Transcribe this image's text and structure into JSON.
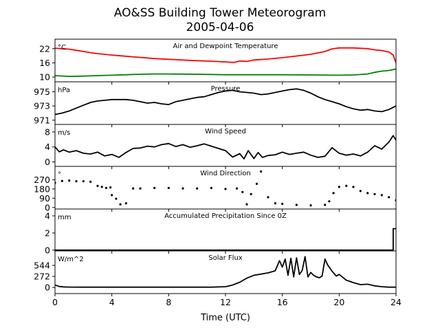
{
  "title": {
    "line1": "AO&SS Building Tower Meteorogram",
    "line2": "2005-04-06"
  },
  "x_axis": {
    "label": "Time (UTC)",
    "ticks": [
      0,
      4,
      8,
      12,
      16,
      20,
      24
    ],
    "range": [
      0,
      24
    ]
  },
  "chart_data": [
    {
      "type": "line",
      "title": "Air and Dewpoint Temperature",
      "unit": "°C",
      "ylim": [
        8,
        26
      ],
      "yticks": [
        10,
        16,
        22
      ],
      "series": [
        {
          "color": "#ff0000",
          "x": [
            0,
            0.5,
            1,
            1.5,
            2,
            2.5,
            3,
            3.5,
            4,
            5,
            6,
            7,
            8,
            9,
            10,
            11,
            12,
            12.6,
            13,
            13.5,
            14,
            15,
            16,
            17,
            18,
            19,
            19.5,
            20,
            21,
            22,
            22.5,
            23,
            23.5,
            23.8,
            24
          ],
          "y": [
            22.2,
            22.0,
            21.8,
            21.3,
            20.8,
            20.3,
            19.9,
            19.6,
            19.3,
            18.8,
            18.3,
            17.8,
            17.5,
            17.2,
            16.9,
            16.7,
            16.4,
            16.2,
            16.8,
            16.6,
            17.2,
            17.6,
            18.2,
            18.9,
            19.6,
            20.8,
            21.9,
            22.3,
            22.3,
            22.0,
            21.5,
            21.2,
            20.6,
            19.3,
            16.0
          ]
        },
        {
          "color": "#008000",
          "x": [
            0,
            1,
            2,
            3,
            4,
            5,
            6,
            7,
            8,
            10,
            12,
            14,
            16,
            18,
            20,
            21,
            22,
            22.5,
            23,
            23.5,
            24
          ],
          "y": [
            10.6,
            10.3,
            10.4,
            10.6,
            10.8,
            11.0,
            11.2,
            11.3,
            11.3,
            11.2,
            11.0,
            11.0,
            11.0,
            10.9,
            10.8,
            10.9,
            11.3,
            12.0,
            12.5,
            12.8,
            13.4
          ]
        }
      ]
    },
    {
      "type": "line",
      "title": "Pressure",
      "unit": "hPa",
      "ylim": [
        970.4,
        976.4
      ],
      "yticks": [
        971,
        973,
        975
      ],
      "series": [
        {
          "color": "#000000",
          "x": [
            0,
            0.5,
            1,
            1.5,
            2,
            2.5,
            3,
            3.5,
            4,
            4.5,
            5,
            5.5,
            6,
            6.5,
            7,
            7.5,
            8,
            8.5,
            9,
            9.5,
            10,
            10.5,
            11,
            11.5,
            12,
            12.5,
            13,
            13.5,
            14,
            14.5,
            15,
            15.5,
            16,
            16.5,
            17,
            17.5,
            18,
            18.5,
            19,
            19.5,
            20,
            20.5,
            21,
            21.5,
            22,
            22.5,
            23,
            23.5,
            24
          ],
          "y": [
            971.8,
            972.0,
            972.3,
            972.7,
            973.1,
            973.5,
            973.7,
            973.8,
            973.9,
            973.9,
            973.9,
            973.8,
            973.6,
            973.4,
            973.5,
            973.3,
            973.2,
            973.6,
            973.8,
            974.0,
            974.2,
            974.3,
            974.6,
            974.9,
            975.1,
            975.2,
            975.0,
            974.9,
            974.8,
            974.6,
            974.7,
            974.9,
            975.1,
            975.3,
            975.4,
            975.2,
            974.8,
            974.3,
            973.9,
            973.6,
            973.3,
            972.9,
            972.6,
            972.4,
            972.5,
            972.3,
            972.2,
            972.5,
            973.0
          ]
        }
      ]
    },
    {
      "type": "line",
      "title": "Wind Speed",
      "unit": "m/s",
      "ylim": [
        -1.2,
        10
      ],
      "yticks": [
        0,
        4,
        8
      ],
      "series": [
        {
          "color": "#000000",
          "x": [
            0,
            0.3,
            0.6,
            1,
            1.5,
            2,
            2.5,
            3,
            3.5,
            4,
            4.5,
            5,
            5.5,
            6,
            6.5,
            7,
            7.5,
            8,
            8.5,
            9,
            9.5,
            10,
            10.5,
            11,
            11.5,
            12,
            12.5,
            13,
            13.3,
            13.6,
            14,
            14.3,
            14.6,
            15,
            15.5,
            16,
            16.5,
            17,
            17.5,
            18,
            18.5,
            19,
            19.5,
            20,
            20.5,
            21,
            21.5,
            22,
            22.5,
            23,
            23.5,
            23.8,
            24
          ],
          "y": [
            4.0,
            2.7,
            3.2,
            2.6,
            3.0,
            2.3,
            2.1,
            2.6,
            1.6,
            2.0,
            1.2,
            2.5,
            3.6,
            3.7,
            4.2,
            4.0,
            4.6,
            4.9,
            4.1,
            4.6,
            3.9,
            4.3,
            4.8,
            4.2,
            3.6,
            3.0,
            1.3,
            2.2,
            0.8,
            3.0,
            0.9,
            2.5,
            1.2,
            1.7,
            1.9,
            2.6,
            2.0,
            2.3,
            2.6,
            1.8,
            1.2,
            1.5,
            3.8,
            2.3,
            1.8,
            2.1,
            1.6,
            2.6,
            4.3,
            3.4,
            5.3,
            7.0,
            5.8
          ]
        }
      ]
    },
    {
      "type": "scatter",
      "title": "Wind Direction",
      "unit": "°",
      "ylim": [
        -15,
        400
      ],
      "yticks": [
        0,
        90,
        180,
        270
      ],
      "series": [
        {
          "color": "#000000",
          "x": [
            0,
            0.5,
            1,
            1.5,
            2,
            2.5,
            3,
            3.3,
            3.6,
            3.9,
            4.0,
            4.3,
            4.6,
            5.0,
            5.5,
            6,
            7,
            8,
            9,
            10,
            11,
            12,
            12.8,
            13.2,
            13.5,
            13.8,
            14.2,
            14.5,
            15,
            15.5,
            16,
            17,
            18,
            19,
            19.3,
            19.6,
            20,
            20.5,
            21,
            21.5,
            22,
            22.5,
            23,
            23.5,
            24
          ],
          "y": [
            240,
            258,
            262,
            255,
            255,
            250,
            210,
            200,
            190,
            195,
            120,
            85,
            30,
            40,
            185,
            185,
            190,
            190,
            185,
            185,
            190,
            180,
            185,
            150,
            30,
            130,
            230,
            350,
            100,
            40,
            35,
            25,
            20,
            25,
            60,
            140,
            200,
            210,
            200,
            160,
            140,
            130,
            120,
            100,
            70
          ]
        }
      ]
    },
    {
      "type": "line",
      "title": "Accumulated Precipitation Since 0Z",
      "unit": "mm",
      "ylim": [
        -0.1,
        4.8
      ],
      "yticks": [
        0,
        2,
        4
      ],
      "series": [
        {
          "color": "#000000",
          "x": [
            0,
            23.8,
            23.8,
            24
          ],
          "y": [
            0,
            0,
            2.5,
            2.5
          ]
        }
      ]
    },
    {
      "type": "line",
      "title": "Solar Flux",
      "unit": "W/m^2",
      "ylim": [
        -150,
        900
      ],
      "yticks": [
        0,
        272,
        544
      ],
      "series": [
        {
          "color": "#000000",
          "x": [
            0,
            0.3,
            0.6,
            1,
            2,
            4,
            6,
            8,
            10,
            11,
            12,
            12.5,
            13,
            13.5,
            14,
            14.5,
            15,
            15.5,
            15.8,
            16,
            16.2,
            16.4,
            16.6,
            16.8,
            17,
            17.2,
            17.4,
            17.6,
            17.8,
            18,
            18.2,
            18.4,
            18.6,
            18.8,
            19,
            19.2,
            19.5,
            19.8,
            20,
            20.5,
            21,
            21.5,
            22,
            22.5,
            23,
            23.5,
            24
          ],
          "y": [
            60,
            25,
            15,
            10,
            8,
            8,
            8,
            8,
            8,
            8,
            20,
            60,
            130,
            230,
            300,
            330,
            360,
            410,
            660,
            500,
            700,
            300,
            720,
            260,
            730,
            320,
            420,
            760,
            260,
            370,
            300,
            260,
            240,
            280,
            700,
            550,
            400,
            280,
            320,
            180,
            120,
            70,
            80,
            40,
            20,
            8,
            8
          ]
        }
      ]
    }
  ]
}
